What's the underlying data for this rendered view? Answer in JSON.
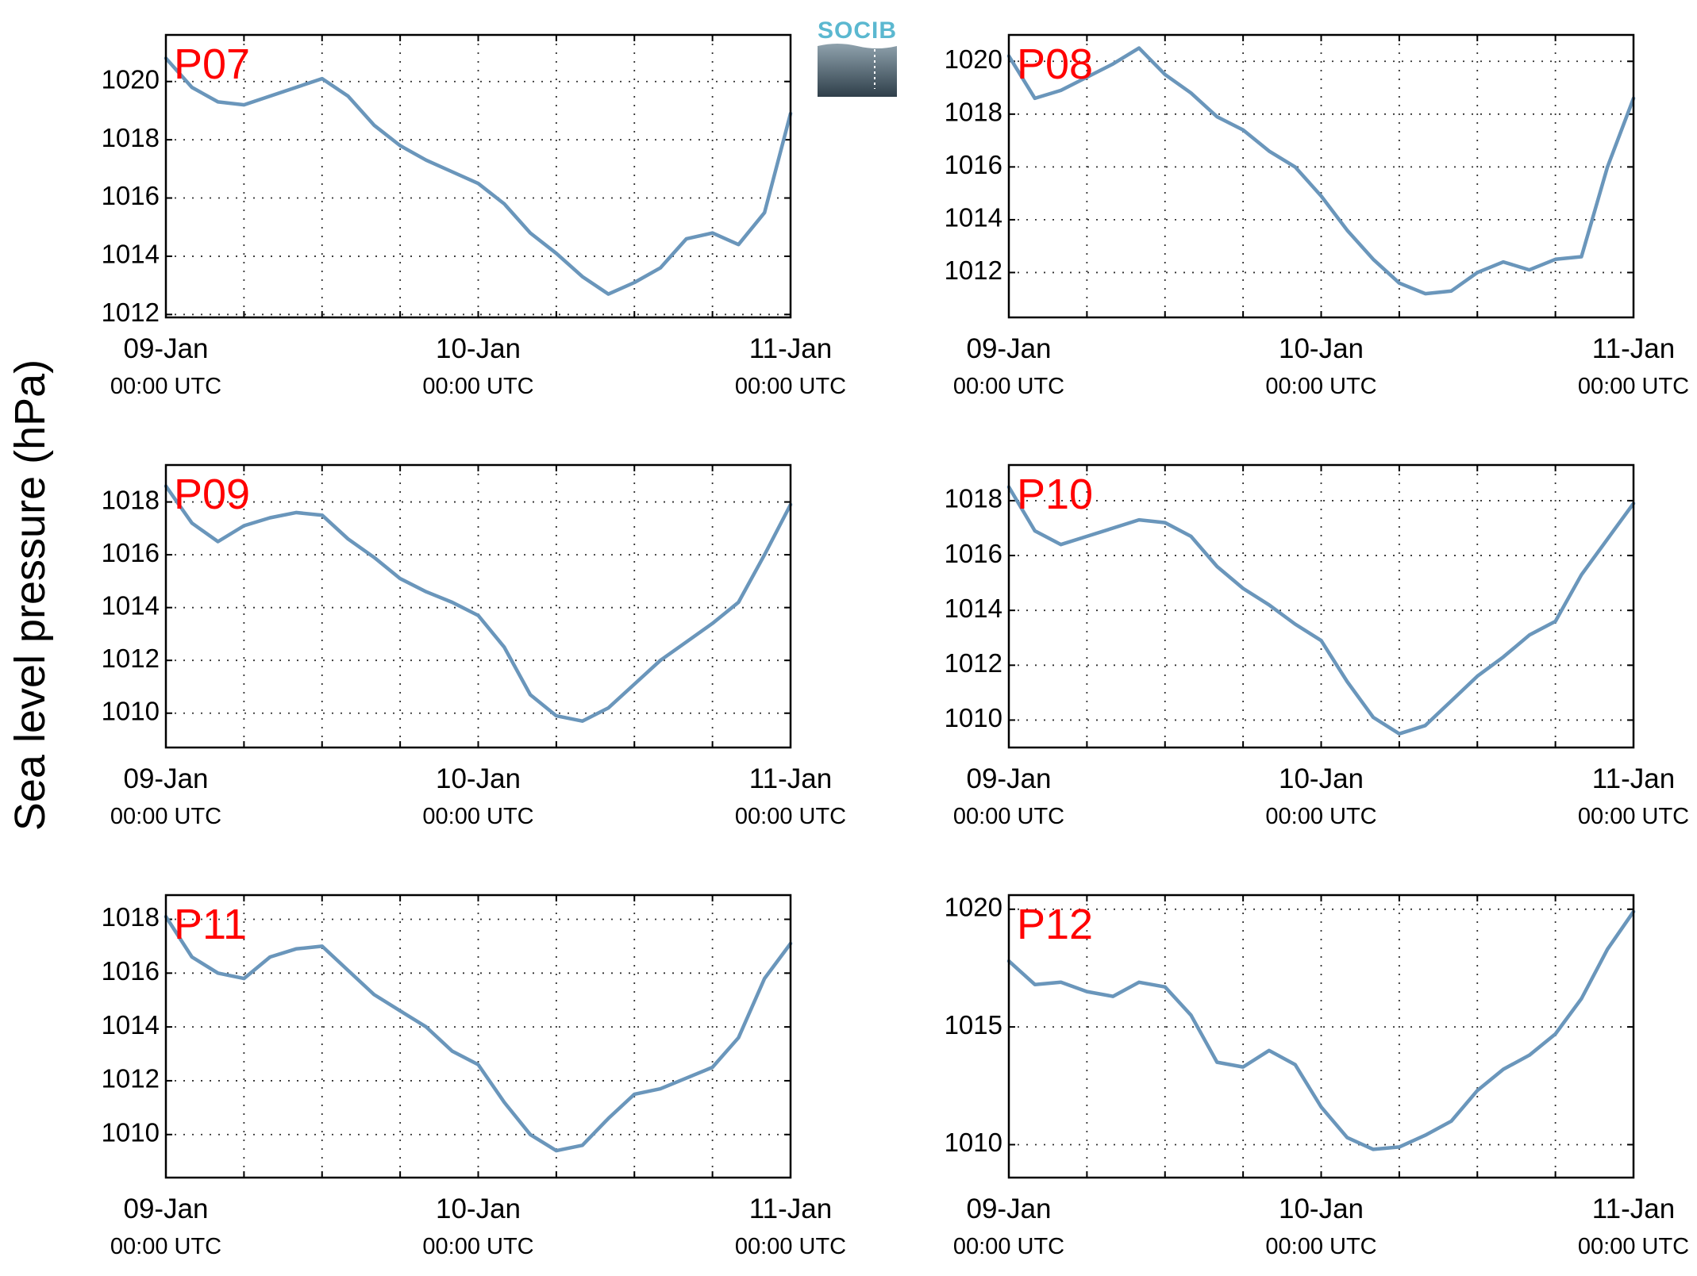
{
  "figure": {
    "ylabel": "Sea level pressure (hPa)",
    "logo_text": "SOCIB",
    "colors": {
      "series": "#6a96bb",
      "station_label": "#ff0000"
    }
  },
  "chart_data": [
    {
      "type": "line",
      "label": "P07",
      "ylim": [
        1011.9,
        1021.6
      ],
      "yticks": [
        1012,
        1014,
        1016,
        1018,
        1020
      ],
      "xticks": [
        {
          "date": "09-Jan",
          "time": "00:00 UTC"
        },
        {
          "date": "10-Jan",
          "time": "00:00 UTC"
        },
        {
          "date": "11-Jan",
          "time": "00:00 UTC"
        }
      ],
      "x_hours": [
        0,
        2,
        4,
        6,
        8,
        10,
        12,
        14,
        16,
        18,
        20,
        22,
        24,
        26,
        28,
        30,
        32,
        34,
        36,
        38,
        40,
        42,
        44,
        46,
        48
      ],
      "values": [
        1020.8,
        1019.8,
        1019.3,
        1019.2,
        1019.5,
        1019.8,
        1020.1,
        1019.5,
        1018.5,
        1017.8,
        1017.3,
        1016.9,
        1016.5,
        1015.8,
        1014.8,
        1014.1,
        1013.3,
        1012.7,
        1013.1,
        1013.6,
        1014.6,
        1014.8,
        1014.4,
        1015.5,
        1018.9
      ]
    },
    {
      "type": "line",
      "label": "P08",
      "ylim": [
        1010.3,
        1021.0
      ],
      "yticks": [
        1012,
        1014,
        1016,
        1018,
        1020
      ],
      "xticks": [
        {
          "date": "09-Jan",
          "time": "00:00 UTC"
        },
        {
          "date": "10-Jan",
          "time": "00:00 UTC"
        },
        {
          "date": "11-Jan",
          "time": "00:00 UTC"
        }
      ],
      "x_hours": [
        0,
        2,
        4,
        6,
        8,
        10,
        12,
        14,
        16,
        18,
        20,
        22,
        24,
        26,
        28,
        30,
        32,
        34,
        36,
        38,
        40,
        42,
        44,
        46,
        48
      ],
      "values": [
        1020.2,
        1018.6,
        1018.9,
        1019.4,
        1019.9,
        1020.5,
        1019.5,
        1018.8,
        1017.9,
        1017.4,
        1016.6,
        1016.0,
        1014.9,
        1013.6,
        1012.5,
        1011.6,
        1011.2,
        1011.3,
        1012.0,
        1012.4,
        1012.1,
        1012.5,
        1012.6,
        1016.0,
        1018.6
      ]
    },
    {
      "type": "line",
      "label": "P09",
      "ylim": [
        1008.7,
        1019.4
      ],
      "yticks": [
        1010,
        1012,
        1014,
        1016,
        1018
      ],
      "xticks": [
        {
          "date": "09-Jan",
          "time": "00:00 UTC"
        },
        {
          "date": "10-Jan",
          "time": "00:00 UTC"
        },
        {
          "date": "11-Jan",
          "time": "00:00 UTC"
        }
      ],
      "x_hours": [
        0,
        2,
        4,
        6,
        8,
        10,
        12,
        14,
        16,
        18,
        20,
        22,
        24,
        26,
        28,
        30,
        32,
        34,
        36,
        38,
        40,
        42,
        44,
        46,
        48
      ],
      "values": [
        1018.6,
        1017.2,
        1016.5,
        1017.1,
        1017.4,
        1017.6,
        1017.5,
        1016.6,
        1015.9,
        1015.1,
        1014.6,
        1014.2,
        1013.7,
        1012.5,
        1010.7,
        1009.9,
        1009.7,
        1010.2,
        1011.1,
        1012.0,
        1012.7,
        1013.4,
        1014.2,
        1016.0,
        1017.9
      ]
    },
    {
      "type": "line",
      "label": "P10",
      "ylim": [
        1009.0,
        1019.3
      ],
      "yticks": [
        1010,
        1012,
        1014,
        1016,
        1018
      ],
      "xticks": [
        {
          "date": "09-Jan",
          "time": "00:00 UTC"
        },
        {
          "date": "10-Jan",
          "time": "00:00 UTC"
        },
        {
          "date": "11-Jan",
          "time": "00:00 UTC"
        }
      ],
      "x_hours": [
        0,
        2,
        4,
        6,
        8,
        10,
        12,
        14,
        16,
        18,
        20,
        22,
        24,
        26,
        28,
        30,
        32,
        34,
        36,
        38,
        40,
        42,
        44,
        46,
        48
      ],
      "values": [
        1018.5,
        1016.9,
        1016.4,
        1016.7,
        1017.0,
        1017.3,
        1017.2,
        1016.7,
        1015.6,
        1014.8,
        1014.2,
        1013.5,
        1012.9,
        1011.4,
        1010.1,
        1009.5,
        1009.8,
        1010.7,
        1011.6,
        1012.3,
        1013.1,
        1013.6,
        1015.3,
        1016.6,
        1017.9
      ]
    },
    {
      "type": "line",
      "label": "P11",
      "ylim": [
        1008.4,
        1018.9
      ],
      "yticks": [
        1010,
        1012,
        1014,
        1016,
        1018
      ],
      "xticks": [
        {
          "date": "09-Jan",
          "time": "00:00 UTC"
        },
        {
          "date": "10-Jan",
          "time": "00:00 UTC"
        },
        {
          "date": "11-Jan",
          "time": "00:00 UTC"
        }
      ],
      "x_hours": [
        0,
        2,
        4,
        6,
        8,
        10,
        12,
        14,
        16,
        18,
        20,
        22,
        24,
        26,
        28,
        30,
        32,
        34,
        36,
        38,
        40,
        42,
        44,
        46,
        48
      ],
      "values": [
        1018.1,
        1016.6,
        1016.0,
        1015.8,
        1016.6,
        1016.9,
        1017.0,
        1016.1,
        1015.2,
        1014.6,
        1014.0,
        1013.1,
        1012.6,
        1011.2,
        1010.0,
        1009.4,
        1009.6,
        1010.6,
        1011.5,
        1011.7,
        1012.1,
        1012.5,
        1013.6,
        1015.8,
        1017.1
      ]
    },
    {
      "type": "line",
      "label": "P12",
      "ylim": [
        1008.6,
        1020.6
      ],
      "yticks": [
        1010,
        1015,
        1020
      ],
      "xticks": [
        {
          "date": "09-Jan",
          "time": "00:00 UTC"
        },
        {
          "date": "10-Jan",
          "time": "00:00 UTC"
        },
        {
          "date": "11-Jan",
          "time": "00:00 UTC"
        }
      ],
      "x_hours": [
        0,
        2,
        4,
        6,
        8,
        10,
        12,
        14,
        16,
        18,
        20,
        22,
        24,
        26,
        28,
        30,
        32,
        34,
        36,
        38,
        40,
        42,
        44,
        46,
        48
      ],
      "values": [
        1017.8,
        1016.8,
        1016.9,
        1016.5,
        1016.3,
        1016.9,
        1016.7,
        1015.5,
        1013.5,
        1013.3,
        1014.0,
        1013.4,
        1011.6,
        1010.3,
        1009.8,
        1009.9,
        1010.4,
        1011.0,
        1012.3,
        1013.2,
        1013.8,
        1014.7,
        1016.2,
        1018.3,
        1019.9
      ]
    }
  ]
}
